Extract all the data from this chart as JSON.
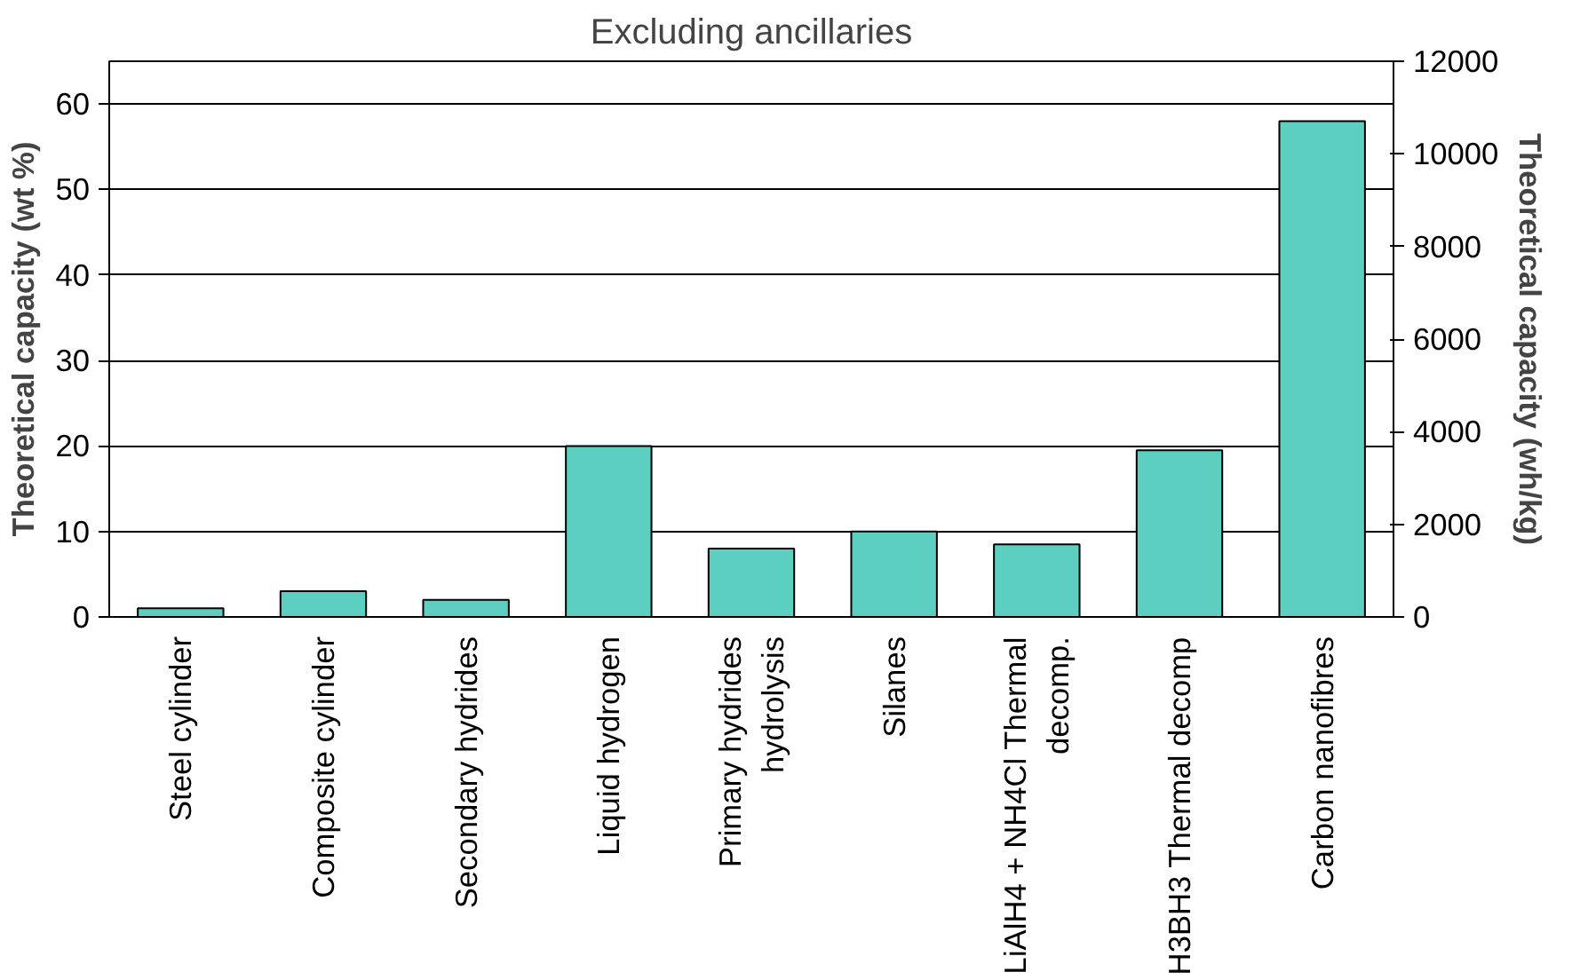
{
  "chart_data": {
    "type": "bar",
    "title": "Excluding ancillaries",
    "categories": [
      "Steel cylinder",
      "Composite cylinder",
      "Secondary hydrides",
      "Liquid hydrogen",
      "Primary hydrides\nhydrolysis",
      "Silanes",
      "LiAlH4 + NH4Cl Thermal\ndecomp.",
      "H3BH3 Thermal decomp",
      "Carbon nanofibres"
    ],
    "values": [
      1,
      3,
      2,
      20,
      8,
      10,
      8.5,
      19.5,
      58
    ],
    "color": "#5ccfc0",
    "ylabel": "Theoretical capacity (wt %)",
    "y2label": "Theoretical capacity (wh/kg)",
    "ylim": [
      0,
      65
    ],
    "yticks": [
      0,
      10,
      20,
      30,
      40,
      50,
      60
    ],
    "y2lim": [
      0,
      12000
    ],
    "y2ticks": [
      0,
      2000,
      4000,
      6000,
      8000,
      10000,
      12000
    ],
    "grid": "y"
  }
}
